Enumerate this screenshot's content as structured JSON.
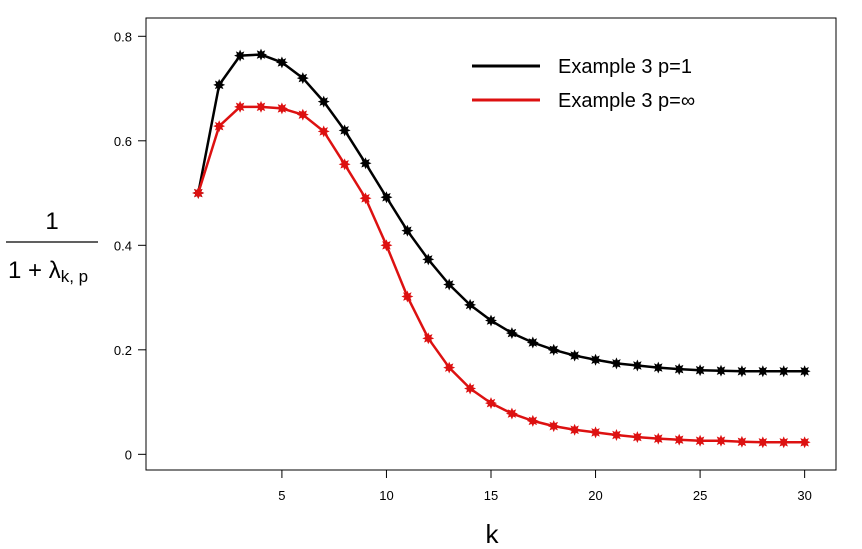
{
  "chart_data": {
    "type": "line",
    "xlabel": "k",
    "ylabel": {
      "numerator": "1",
      "denominator_prefix": "1 + λ",
      "denominator_subscript": "k, p"
    },
    "xlim": [
      -1.5,
      31.5
    ],
    "ylim": [
      -0.03,
      0.835
    ],
    "x_ticks": [
      5,
      10,
      15,
      20,
      25,
      30
    ],
    "y_ticks": [
      0,
      0.2,
      0.4,
      0.6,
      0.8
    ],
    "grid": false,
    "legend_position": "top-right",
    "x": [
      1,
      2,
      3,
      4,
      5,
      6,
      7,
      8,
      9,
      10,
      11,
      12,
      13,
      14,
      15,
      16,
      17,
      18,
      19,
      20,
      21,
      22,
      23,
      24,
      25,
      26,
      27,
      28,
      29,
      30
    ],
    "series": [
      {
        "name": "Example 3 p=1",
        "color": "#000000",
        "marker": "star",
        "values": [
          0.5,
          0.707,
          0.763,
          0.765,
          0.75,
          0.72,
          0.675,
          0.62,
          0.557,
          0.492,
          0.428,
          0.373,
          0.325,
          0.286,
          0.256,
          0.232,
          0.214,
          0.2,
          0.189,
          0.181,
          0.174,
          0.17,
          0.166,
          0.163,
          0.161,
          0.16,
          0.159,
          0.159,
          0.159,
          0.159
        ]
      },
      {
        "name": "Example 3 p=∞",
        "color": "#dd1111",
        "marker": "star",
        "values": [
          0.5,
          0.628,
          0.665,
          0.665,
          0.662,
          0.65,
          0.618,
          0.555,
          0.49,
          0.4,
          0.302,
          0.222,
          0.166,
          0.126,
          0.098,
          0.078,
          0.064,
          0.054,
          0.047,
          0.042,
          0.037,
          0.033,
          0.03,
          0.028,
          0.026,
          0.026,
          0.024,
          0.023,
          0.023,
          0.023
        ]
      }
    ]
  }
}
